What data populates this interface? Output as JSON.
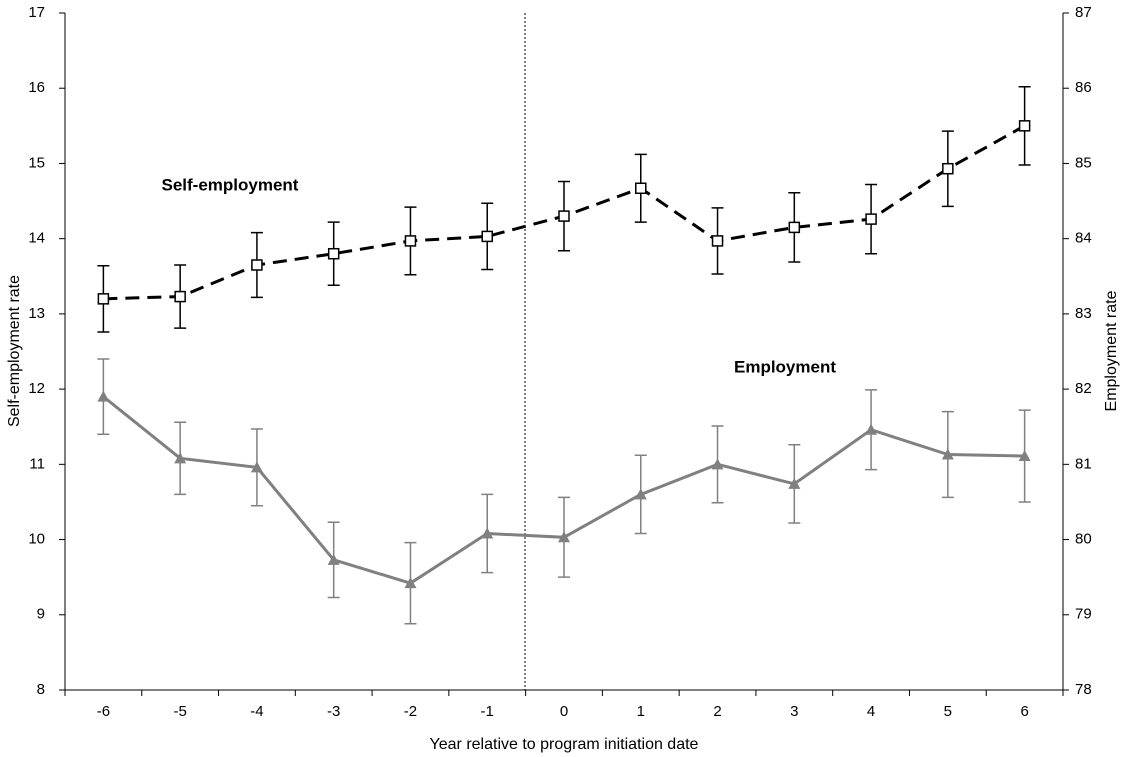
{
  "chart_data": {
    "type": "line",
    "x_label": "Year relative to program initiation date",
    "y_label": "Self-employment rate",
    "y2_label": "Employment rate",
    "categories": [
      "-6",
      "-5",
      "-4",
      "-3",
      "-2",
      "-1",
      "0",
      "1",
      "2",
      "3",
      "4",
      "5",
      "6"
    ],
    "ylim": [
      8,
      17
    ],
    "yticks": [
      8,
      9,
      10,
      11,
      12,
      13,
      14,
      15,
      16,
      17
    ],
    "y2lim": [
      78,
      87
    ],
    "y2ticks": [
      78,
      79,
      80,
      81,
      82,
      83,
      84,
      85,
      86,
      87
    ],
    "series": [
      {
        "name": "Self-employment",
        "color": "#000000",
        "marker": "square",
        "dashed": true,
        "values": [
          13.2,
          13.23,
          13.65,
          13.8,
          13.97,
          14.03,
          14.3,
          14.67,
          13.97,
          14.15,
          14.26,
          14.93,
          15.5
        ],
        "errors": [
          0.44,
          0.42,
          0.43,
          0.42,
          0.45,
          0.44,
          0.46,
          0.45,
          0.44,
          0.46,
          0.46,
          0.5,
          0.52
        ]
      },
      {
        "name": "Employment",
        "color": "#808080",
        "marker": "triangle",
        "dashed": false,
        "axis": "y2",
        "values": [
          81.9,
          81.08,
          80.96,
          79.73,
          79.42,
          80.08,
          80.03,
          80.6,
          81.0,
          80.74,
          81.46,
          81.13,
          81.11
        ],
        "errors": [
          0.5,
          0.48,
          0.51,
          0.5,
          0.54,
          0.52,
          0.53,
          0.52,
          0.51,
          0.52,
          0.53,
          0.57,
          0.61
        ]
      }
    ]
  }
}
